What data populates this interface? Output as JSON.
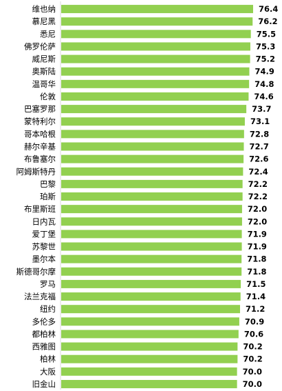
{
  "colors": {
    "bar": "#92D050",
    "axis": "#D9D9D9"
  },
  "chart_data": {
    "type": "bar",
    "orientation": "horizontal",
    "categories": [
      "维也纳",
      "慕尼黑",
      "悉尼",
      "佛罗伦萨",
      "威尼斯",
      "奥斯陆",
      "温哥华",
      "伦敦",
      "巴塞罗那",
      "蒙特利尔",
      "哥本哈根",
      "赫尔辛基",
      "布鲁塞尔",
      "阿姆斯特丹",
      "巴黎",
      "珀斯",
      "布里斯班",
      "日内瓦",
      "爱丁堡",
      "苏黎世",
      "墨尔本",
      "斯德哥尔摩",
      "罗马",
      "法兰克福",
      "纽约",
      "多伦多",
      "都柏林",
      "西雅图",
      "柏林",
      "大阪",
      "旧金山"
    ],
    "values": [
      76.4,
      76.2,
      75.5,
      75.3,
      75.2,
      74.9,
      74.8,
      74.6,
      73.7,
      73.1,
      72.8,
      72.7,
      72.6,
      72.4,
      72.2,
      72.2,
      72.0,
      72.0,
      71.9,
      71.9,
      71.8,
      71.8,
      71.5,
      71.4,
      71.2,
      70.9,
      70.6,
      70.2,
      70.2,
      70.0,
      70.0
    ],
    "value_labels": [
      "76.4",
      "76.2",
      "75.5",
      "75.3",
      "75.2",
      "74.9",
      "74.8",
      "74.6",
      "73.7",
      "73.1",
      "72.8",
      "72.7",
      "72.6",
      "72.4",
      "72.2",
      "72.2",
      "72.0",
      "72.0",
      "71.9",
      "71.9",
      "71.8",
      "71.8",
      "71.5",
      "71.4",
      "71.2",
      "70.9",
      "70.6",
      "70.2",
      "70.2",
      "70.0",
      "70.0"
    ],
    "xlim": [
      0,
      76.4
    ],
    "grid": false,
    "legend": "none"
  }
}
